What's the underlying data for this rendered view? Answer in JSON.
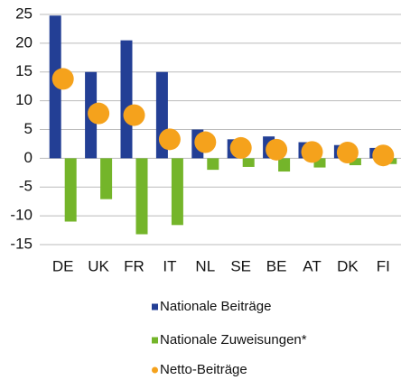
{
  "chart_data": {
    "type": "bar",
    "categories": [
      "DE",
      "UK",
      "FR",
      "IT",
      "NL",
      "SE",
      "BE",
      "AT",
      "DK",
      "FI"
    ],
    "series": [
      {
        "name": "Nationale Beiträge",
        "color": "#233f95",
        "type": "bar",
        "values": [
          24.8,
          15,
          20.5,
          15,
          5,
          3.3,
          3.8,
          2.8,
          2.3,
          1.8
        ]
      },
      {
        "name": "Nationale Zuweisungen*",
        "color": "#74b52a",
        "type": "bar",
        "values": [
          -11,
          -7.1,
          -13.2,
          -11.6,
          -2,
          -1.5,
          -2.3,
          -1.6,
          -1.2,
          -1
        ]
      },
      {
        "name": "Netto-Beiträge",
        "color": "#f5a21c",
        "type": "scatter",
        "values": [
          13.8,
          7.8,
          7.5,
          3.3,
          2.8,
          1.8,
          1.5,
          1.1,
          1.0,
          0.5
        ]
      }
    ],
    "ylim": [
      -15,
      25
    ],
    "yticks": [
      -15,
      -10,
      -5,
      0,
      5,
      10,
      15,
      20,
      25
    ],
    "grid": true,
    "legend": "bottom"
  }
}
